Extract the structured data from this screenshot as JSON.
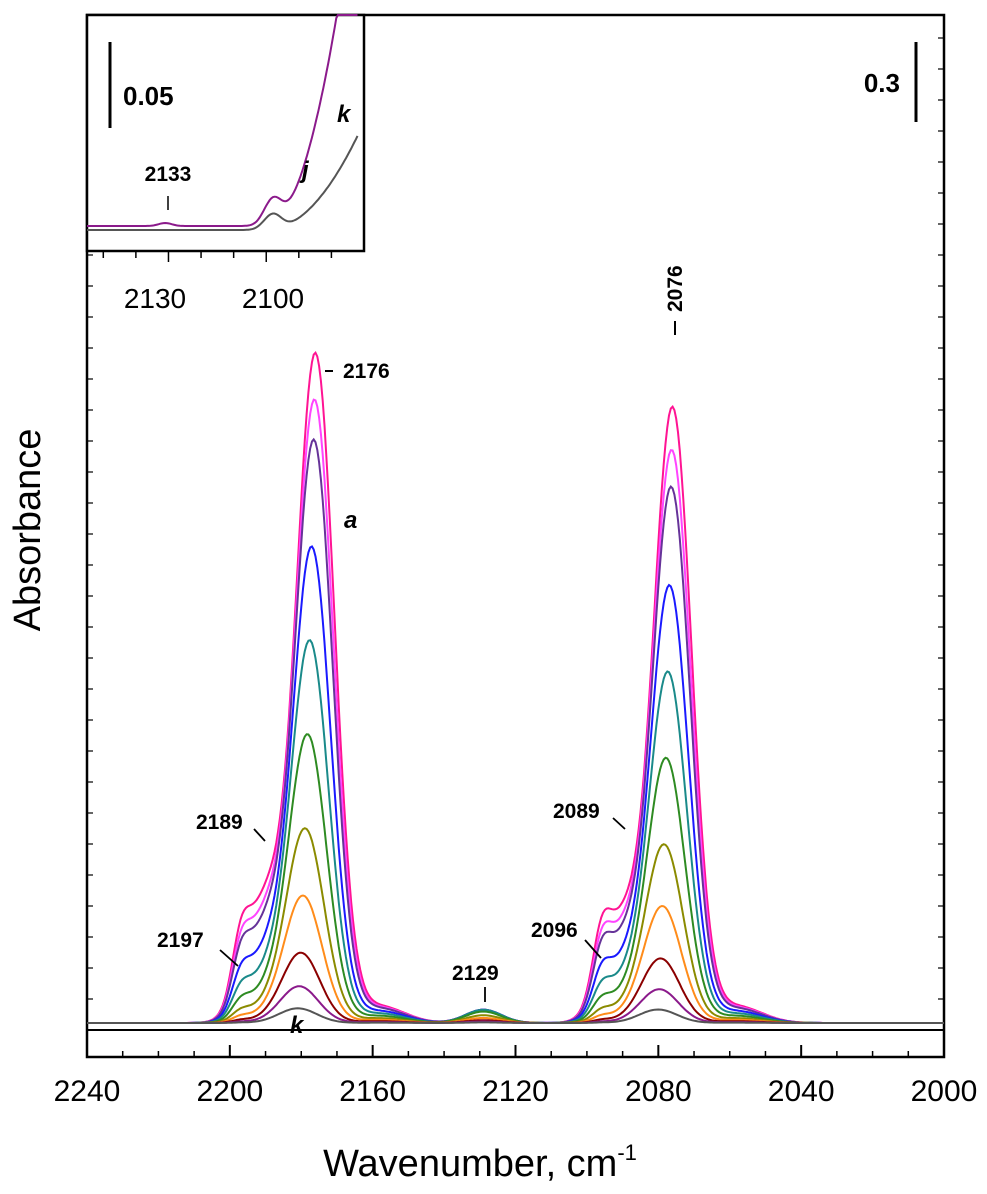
{
  "chart_data": {
    "type": "line",
    "xlabel": "Wavenumber, cm",
    "xlabel_superscript": "-1",
    "ylabel": "Absorbance",
    "xlim": [
      2240,
      2000
    ],
    "x_ticks": [
      2240,
      2200,
      2160,
      2120,
      2080,
      2040,
      2000
    ],
    "scale_bar_label": "0.3",
    "series": [
      {
        "label": "a",
        "color": "#ff1493",
        "scale": 1.0
      },
      {
        "color": "#ff44ff",
        "scale": 0.93
      },
      {
        "color": "#663399",
        "scale": 0.87
      },
      {
        "color": "#1a1aff",
        "scale": 0.71
      },
      {
        "color": "#1a8a8a",
        "scale": 0.57
      },
      {
        "color": "#2e8b22",
        "scale": 0.43
      },
      {
        "color": "#8b8b00",
        "scale": 0.29
      },
      {
        "color": "#ff8c1a",
        "scale": 0.19
      },
      {
        "color": "#8b0000",
        "scale": 0.105
      },
      {
        "color": "#8b1a8b",
        "scale": 0.055
      },
      {
        "label": "k",
        "color": "#555555",
        "scale": 0.022
      }
    ],
    "peaks": [
      {
        "label": "2176",
        "x": 2176
      },
      {
        "label": "2076",
        "x": 2076
      },
      {
        "label": "2189",
        "x": 2189
      },
      {
        "label": "2089",
        "x": 2089
      },
      {
        "label": "2197",
        "x": 2197
      },
      {
        "label": "2096",
        "x": 2096
      },
      {
        "label": "2129",
        "x": 2129
      }
    ],
    "curve_labels": {
      "first": "a",
      "last": "k"
    },
    "inset": {
      "x_ticks": [
        2130,
        2100
      ],
      "scale_bar_label": "0.05",
      "peak_label": "2133",
      "curve_labels": [
        "j",
        "k"
      ]
    }
  },
  "colors": {
    "axis": "#000000",
    "background": "#ffffff"
  }
}
